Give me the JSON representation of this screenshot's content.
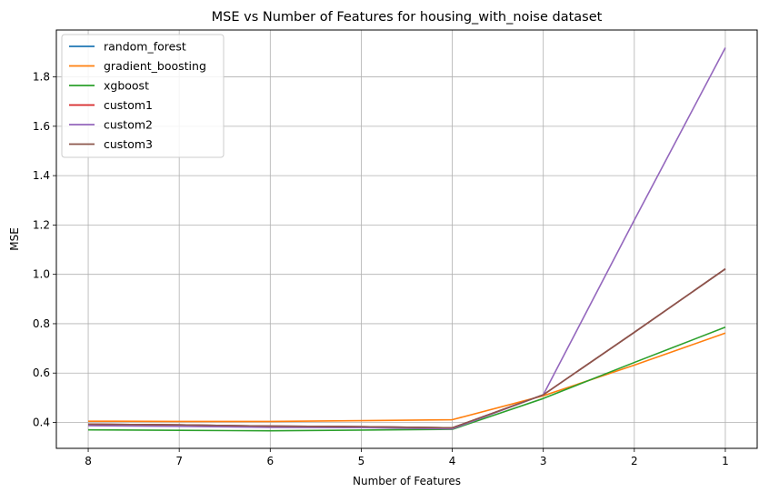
{
  "chart_data": {
    "type": "line",
    "title": "MSE vs Number of Features for housing_with_noise dataset",
    "xlabel": "Number of Features",
    "ylabel": "MSE",
    "x": [
      8,
      7,
      6,
      5,
      4,
      3,
      2,
      1
    ],
    "x_tick_labels": [
      "8",
      "7",
      "6",
      "5",
      "4",
      "3",
      "2",
      "1"
    ],
    "y_ticks": [
      0.4,
      0.6,
      0.8,
      1.0,
      1.2,
      1.4,
      1.6,
      1.8
    ],
    "y_tick_labels": [
      "0.4",
      "0.6",
      "0.8",
      "1.0",
      "1.2",
      "1.4",
      "1.6",
      "1.8"
    ],
    "ylim": [
      0.295,
      1.99
    ],
    "xlim": [
      8.35,
      0.65
    ],
    "x_inverted": true,
    "grid": true,
    "legend_position": "upper-left",
    "series": [
      {
        "name": "random_forest",
        "color": "#1f77b4",
        "values": [
          0.393,
          0.39,
          0.385,
          0.383,
          0.378,
          0.512,
          0.765,
          1.022
        ]
      },
      {
        "name": "gradient_boosting",
        "color": "#ff7f0e",
        "values": [
          0.405,
          0.404,
          0.404,
          0.407,
          0.411,
          0.508,
          0.632,
          0.762
        ]
      },
      {
        "name": "xgboost",
        "color": "#2ca02c",
        "values": [
          0.37,
          0.368,
          0.366,
          0.369,
          0.372,
          0.497,
          0.643,
          0.786
        ]
      },
      {
        "name": "custom1",
        "color": "#d62728",
        "values": [
          0.393,
          0.39,
          0.385,
          0.383,
          0.378,
          0.512,
          0.765,
          1.022
        ]
      },
      {
        "name": "custom2",
        "color": "#9467bd",
        "values": [
          0.387,
          0.384,
          0.38,
          0.379,
          0.374,
          0.512,
          1.22,
          1.918
        ]
      },
      {
        "name": "custom3",
        "color": "#8c564b",
        "values": [
          0.393,
          0.39,
          0.385,
          0.383,
          0.378,
          0.512,
          0.765,
          1.022
        ]
      }
    ]
  }
}
